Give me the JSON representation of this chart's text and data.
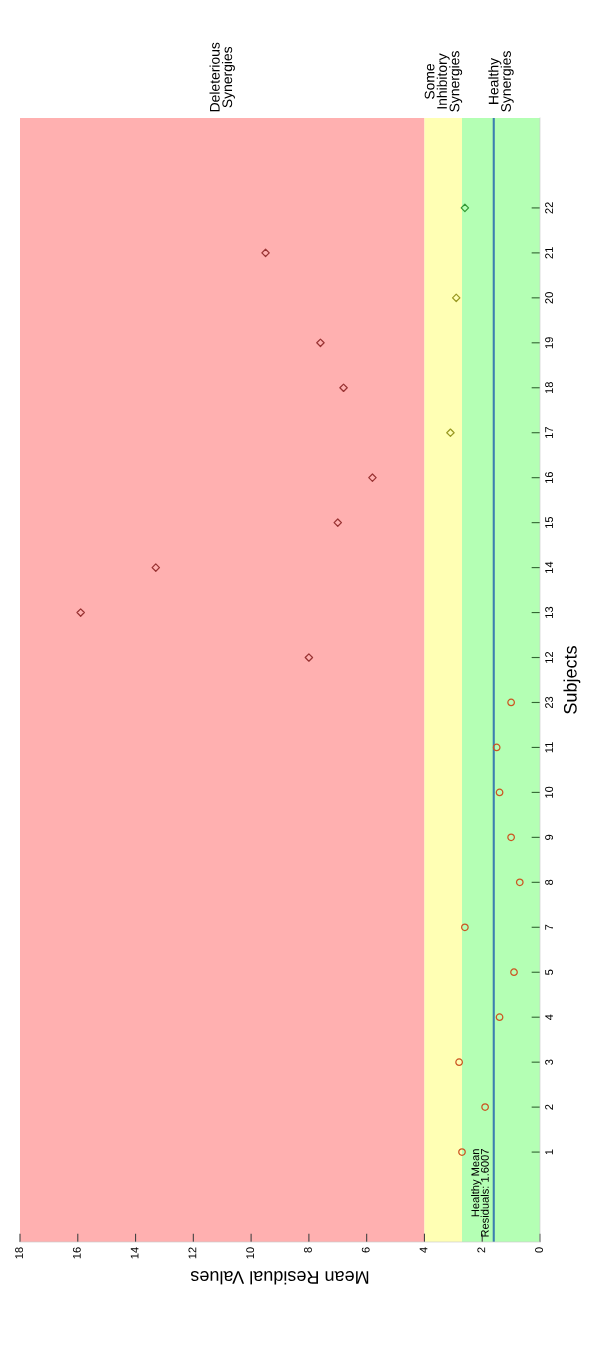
{
  "chart_data": {
    "type": "scatter",
    "orientation": "horizontal",
    "xlabel": "Mean Residual Values",
    "ylabel": "Subjects",
    "categories": [
      "22",
      "21",
      "20",
      "19",
      "18",
      "17",
      "16",
      "15",
      "14",
      "13",
      "12",
      "23",
      "11",
      "10",
      "9",
      "8",
      "7",
      "5",
      "4",
      "3",
      "2",
      "1"
    ],
    "xlim": [
      18,
      0
    ],
    "xticks": [
      0,
      2,
      4,
      6,
      8,
      10,
      12,
      14,
      16,
      18
    ],
    "series": [
      {
        "marker": "circle",
        "color": "#cc5522",
        "values": [
          null,
          null,
          null,
          null,
          null,
          null,
          null,
          null,
          null,
          null,
          null,
          1.0,
          1.5,
          1.4,
          1.0,
          0.7,
          2.6,
          0.9,
          1.4,
          2.8,
          1.9,
          2.7
        ]
      },
      {
        "marker": "diamond",
        "colors": [
          "#339933",
          "#993333",
          "#999922",
          "#993333",
          "#993333",
          "#999922",
          "#993333",
          "#993333",
          "#993333",
          "#993333",
          "#993333",
          null,
          null,
          null,
          null,
          null,
          null,
          null,
          null,
          null,
          null,
          null
        ],
        "values": [
          2.6,
          9.5,
          2.9,
          7.6,
          6.8,
          3.1,
          5.8,
          7.0,
          13.3,
          15.9,
          8.0,
          null,
          null,
          null,
          null,
          null,
          null,
          null,
          null,
          null,
          null,
          null
        ]
      }
    ],
    "bands": [
      {
        "axis": "x",
        "from": 4,
        "to": 18,
        "label": "Deleterious\nSynergies",
        "color": "#ffb0b0"
      },
      {
        "axis": "x",
        "from": 2.7,
        "to": 4,
        "label": "Some\nInhibitory\nSynergies",
        "color": "#ffffb4"
      },
      {
        "axis": "x",
        "from": 0,
        "to": 2.7,
        "label": "Healthy\nSynergies",
        "color": "#b4ffb4"
      }
    ],
    "ref_lines": [
      {
        "axis": "x",
        "value": 1.6007,
        "label": "Healthy Mean\nResiduals: 1.6007",
        "color": "#3b7fb0",
        "line_style": "solid"
      }
    ]
  }
}
